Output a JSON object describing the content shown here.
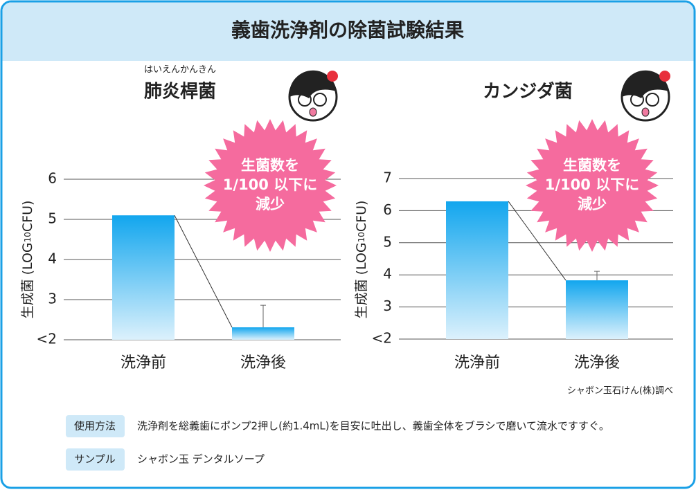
{
  "header": {
    "title": "義歯洗浄剤の除菌試験結果"
  },
  "chart_data": [
    {
      "type": "bar",
      "ruby": "はいえんかんきん",
      "title": "肺炎桿菌",
      "y_label": {
        "prefix": "生成菌 (LOG",
        "sub": "10",
        "suffix": "CFU)"
      },
      "categories": [
        "洗浄前",
        "洗浄後"
      ],
      "values": [
        5.1,
        2.31
      ],
      "errors": [
        null,
        0.55
      ],
      "ylim": [
        2,
        6
      ],
      "yticks": [
        {
          "value": 2,
          "label": "<2"
        },
        3,
        4,
        5,
        6
      ],
      "grid": true,
      "burst": [
        "生菌数を",
        "1/100 以下に",
        "減少"
      ]
    },
    {
      "type": "bar",
      "title": "カンジダ菌",
      "y_label": {
        "prefix": "生成菌 (LOG",
        "sub": "10",
        "suffix": "CFU)"
      },
      "categories": [
        "洗浄前",
        "洗浄後"
      ],
      "values": [
        6.29,
        3.83
      ],
      "errors": [
        null,
        0.28
      ],
      "ylim": [
        2,
        7
      ],
      "yticks": [
        {
          "value": 2,
          "label": "<2"
        },
        3,
        4,
        5,
        6,
        7
      ],
      "grid": true,
      "burst": [
        "生菌数を",
        "1/100 以下に",
        "減少"
      ]
    }
  ],
  "source": "シャボン玉石けん(株)調べ",
  "footer": [
    {
      "label": "使用方法",
      "text": "洗浄剤を総義歯にポンプ2押し(約1.4mL)を目安に吐出し、義歯全体をブラシで磨いて流水ですすぐ。"
    },
    {
      "label": "サンプル",
      "text": "シャボン玉 デンタルソープ"
    }
  ]
}
